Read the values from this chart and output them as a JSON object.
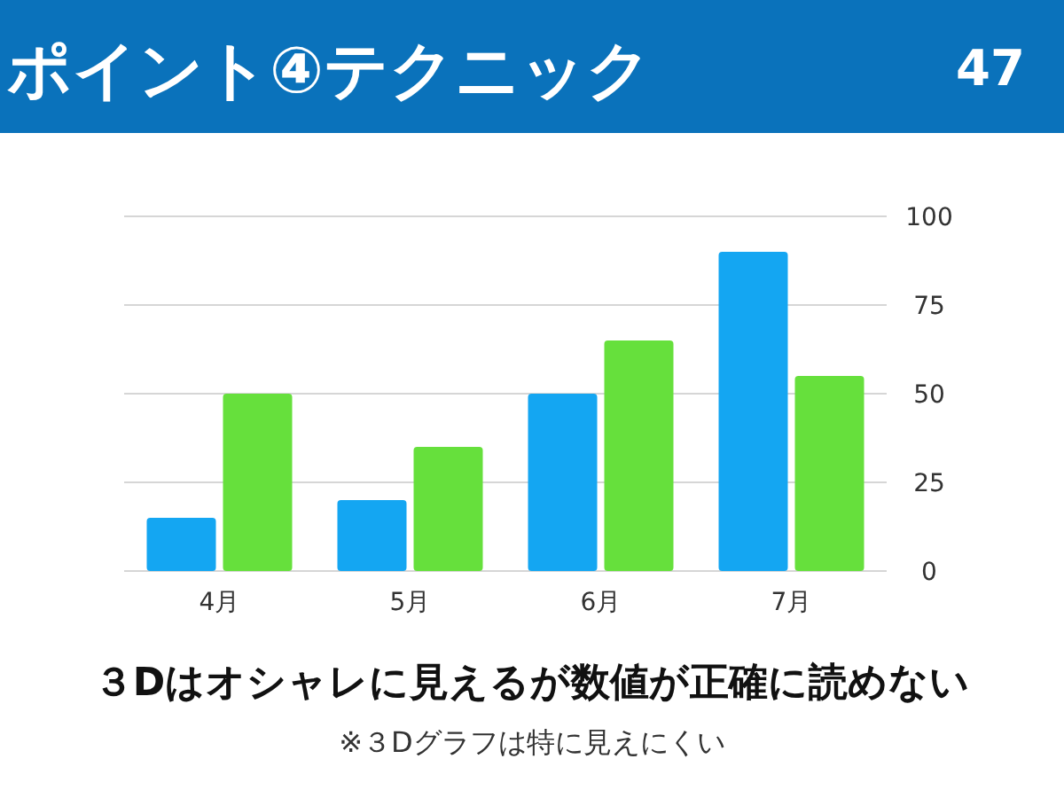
{
  "chart_data": {
    "type": "bar",
    "title": "ポイント④テクニック",
    "subtitle": "３Dはオシャレに見えるが数値が正確に読めない",
    "annotations": [
      "47",
      "※３Dグラフは特に見えにくい"
    ],
    "categories": [
      "4月",
      "5月",
      "6月",
      "7月"
    ],
    "series": [
      {
        "color": "#14a6f2",
        "values": [
          15,
          20,
          50,
          90
        ]
      },
      {
        "color": "#66e03c",
        "values": [
          50,
          35,
          65,
          55
        ]
      }
    ],
    "ylim": [
      0,
      100
    ],
    "yticks": [
      0,
      25,
      50,
      75,
      100
    ],
    "grid": "y"
  }
}
